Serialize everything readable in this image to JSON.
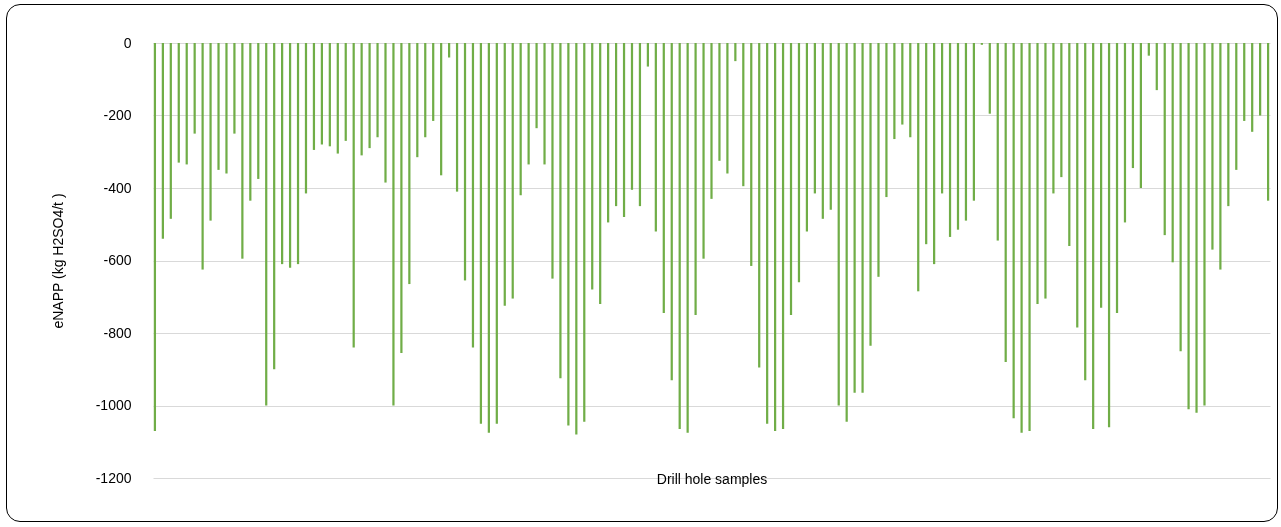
{
  "chart_data": {
    "type": "bar",
    "xlabel": "Drill hole samples",
    "ylabel": "eNAPP (kg H2SO4/t )",
    "categories": [
      null,
      null,
      null,
      null,
      null,
      null,
      null,
      null,
      null,
      null,
      null,
      null,
      null,
      null,
      null,
      null,
      null,
      null,
      null,
      null,
      null,
      null,
      null,
      null,
      null,
      null,
      null,
      null,
      null,
      null,
      null,
      null,
      null,
      null,
      null,
      null,
      null,
      null,
      null,
      null,
      null,
      null,
      null,
      null,
      null,
      null,
      null,
      null,
      null,
      null,
      null,
      null,
      null,
      null,
      null,
      null,
      null,
      null,
      null,
      null,
      null,
      null,
      null,
      null,
      null,
      null,
      null,
      null,
      null,
      null,
      null,
      null,
      null,
      null,
      null,
      null,
      null,
      null,
      null,
      null,
      null,
      null,
      null,
      null,
      null,
      null,
      null,
      null,
      null,
      null,
      null,
      null,
      null,
      null,
      null,
      null,
      null,
      null,
      null,
      null,
      null,
      null,
      null,
      null,
      null,
      null,
      null,
      null,
      null,
      null,
      null,
      null,
      null,
      null,
      null,
      null,
      null,
      null,
      null,
      null,
      null,
      null,
      null,
      null,
      null,
      null,
      null,
      null,
      null,
      null,
      null,
      null,
      null,
      null,
      null,
      null,
      null,
      null,
      null,
      null,
      null
    ],
    "values": [
      -1070,
      -540,
      -485,
      -330,
      -335,
      -250,
      -625,
      -490,
      -350,
      -360,
      -250,
      -595,
      -435,
      -375,
      -1000,
      -900,
      -610,
      -620,
      -610,
      -415,
      -295,
      -280,
      -285,
      -305,
      -270,
      -840,
      -310,
      -290,
      -260,
      -385,
      -1000,
      -855,
      -665,
      -315,
      -260,
      -215,
      -365,
      -40,
      -410,
      -655,
      -840,
      -1050,
      -1075,
      -1050,
      -725,
      -705,
      -420,
      -335,
      -235,
      -335,
      -650,
      -925,
      -1055,
      -1080,
      -1045,
      -680,
      -720,
      -495,
      -450,
      -480,
      -405,
      -450,
      -65,
      -520,
      -745,
      -930,
      -1065,
      -1075,
      -750,
      -595,
      -430,
      -325,
      -360,
      -50,
      -395,
      -615,
      -895,
      -1050,
      -1070,
      -1065,
      -750,
      -660,
      -520,
      -415,
      -485,
      -460,
      -1000,
      -1045,
      -965,
      -965,
      -835,
      -645,
      -425,
      -265,
      -225,
      -260,
      -685,
      -555,
      -610,
      -415,
      -535,
      -515,
      -490,
      -435,
      -5,
      -195,
      -545,
      -880,
      -1035,
      -1075,
      -1070,
      -720,
      -705,
      -415,
      -370,
      -560,
      -785,
      -930,
      -1065,
      -730,
      -1060,
      -745,
      -495,
      -345,
      -400,
      -35,
      -130,
      -530,
      -605,
      -850,
      -1010,
      -1020,
      -1000,
      -570,
      -625,
      -450,
      -350,
      -215,
      -245,
      -200,
      -435
    ],
    "color": "#70ad47",
    "ylim": [
      -1200,
      0
    ],
    "yticks": [
      -1200,
      -1000,
      -800,
      -600,
      -400,
      -200,
      0
    ],
    "grid": "y",
    "tick_labels": "y"
  }
}
